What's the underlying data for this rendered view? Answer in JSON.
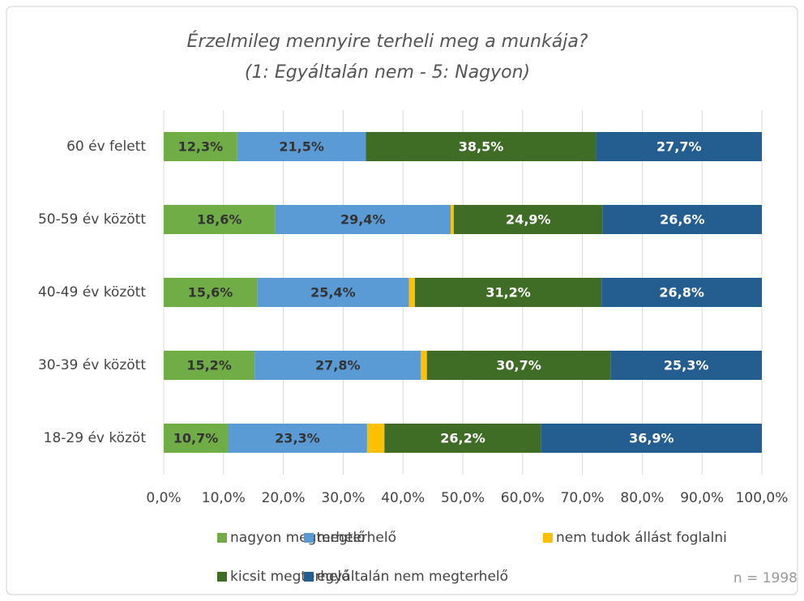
{
  "chart_data": {
    "type": "stacked_barh",
    "title": [
      "Érzelmileg mennyire terheli meg a munkája?",
      "(1: Egyáltalán nem - 5: Nagyon)"
    ],
    "categories": [
      "60 év felett",
      "50-59 év között",
      "40-49 év között",
      "30-39 év között",
      "18-29 év közöt"
    ],
    "series": [
      {
        "name": "nagyon megterhelő",
        "color": "#70ad47",
        "label_color": "#333333",
        "values": [
          12.3,
          18.6,
          15.6,
          15.2,
          10.7
        ],
        "value_labels": [
          "12,3%",
          "18,6%",
          "15,6%",
          "15,2%",
          "10,7%"
        ]
      },
      {
        "name": "megterhelő",
        "color": "#5b9bd5",
        "label_color": "#333333",
        "values": [
          21.5,
          29.4,
          25.4,
          27.8,
          23.3
        ],
        "value_labels": [
          "21,5%",
          "29,4%",
          "25,4%",
          "27,8%",
          "23,3%"
        ]
      },
      {
        "name": "nem tudok állást foglalni",
        "color": "#ffc000",
        "values": [
          0,
          0.5,
          1.0,
          1.0,
          2.9
        ]
      },
      {
        "name": "kicsit megterhelő",
        "color": "#3f6d25",
        "label_color": "#ffffff",
        "values": [
          38.5,
          24.9,
          31.2,
          30.7,
          26.2
        ],
        "value_labels": [
          "38,5%",
          "24,9%",
          "31,2%",
          "30,7%",
          "26,2%"
        ]
      },
      {
        "name": "egyáltalán nem megterhelő",
        "color": "#245d90",
        "label_color": "#ffffff",
        "values": [
          27.7,
          26.6,
          26.8,
          25.3,
          36.9
        ],
        "value_labels": [
          "27,7%",
          "26,6%",
          "26,8%",
          "25,3%",
          "36,9%"
        ]
      }
    ],
    "xlim": [
      0,
      100
    ],
    "xticks": [
      {
        "value": 0,
        "label": "0,0%"
      },
      {
        "value": 10,
        "label": "10,0%"
      },
      {
        "value": 20,
        "label": "20,0%"
      },
      {
        "value": 30,
        "label": "30,0%"
      },
      {
        "value": 40,
        "label": "40,0%"
      },
      {
        "value": 50,
        "label": "50,0%"
      },
      {
        "value": 60,
        "label": "60,0%"
      },
      {
        "value": 70,
        "label": "70,0%"
      },
      {
        "value": 80,
        "label": "80,0%"
      },
      {
        "value": 90,
        "label": "90,0%"
      },
      {
        "value": 100,
        "label": "100,0%"
      }
    ],
    "grid": true,
    "legend": "bottom",
    "annotations": [
      "n = 1998"
    ]
  }
}
